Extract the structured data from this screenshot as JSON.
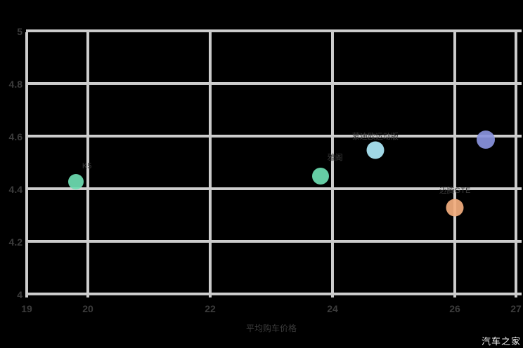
{
  "watermark": "汽车之家",
  "colors": {
    "background": "#000000",
    "gridline": "#cccccc",
    "tick_label": "#3c3c3c",
    "watermark_text": "#f2f2f2"
  },
  "chart_data": {
    "type": "scatter",
    "title": "",
    "xlabel": "平均购车价格",
    "ylabel": "",
    "xlim": [
      19,
      27
    ],
    "ylim": [
      4,
      5
    ],
    "grid": true,
    "x_tick_labels": [
      "19",
      "20",
      "22",
      "24",
      "26",
      "27"
    ],
    "x_tick_values": [
      19,
      20,
      22,
      24,
      26,
      27
    ],
    "y_tick_labels": [
      "4",
      "4.2",
      "4.4",
      "4.6",
      "4.8",
      "5"
    ],
    "y_tick_values": [
      4,
      4.2,
      4.4,
      4.6,
      4.8,
      5
    ],
    "points": [
      {
        "name": "K5",
        "x": 19.8,
        "y": 4.43,
        "diameter": 22,
        "color": "#6eddb2",
        "label_offset": [
          16,
          -22
        ]
      },
      {
        "name": "雅阁",
        "x": 23.8,
        "y": 4.45,
        "diameter": 24,
        "color": "#6eddb2",
        "label_offset": [
          21,
          -26
        ]
      },
      {
        "name": "蒙迪欧运动版",
        "x": 24.7,
        "y": 4.55,
        "diameter": 25,
        "color": "#aee9f8",
        "label_offset": [
          0,
          -19
        ]
      },
      {
        "name": "",
        "x": 26.5,
        "y": 4.59,
        "diameter": 26,
        "color": "#8a94de",
        "label_offset": [
          0,
          -20
        ]
      },
      {
        "name": "迈腾GTE",
        "x": 26.0,
        "y": 4.33,
        "diameter": 25,
        "color": "#f3ae7e",
        "label_offset": [
          0,
          -24
        ]
      }
    ]
  }
}
